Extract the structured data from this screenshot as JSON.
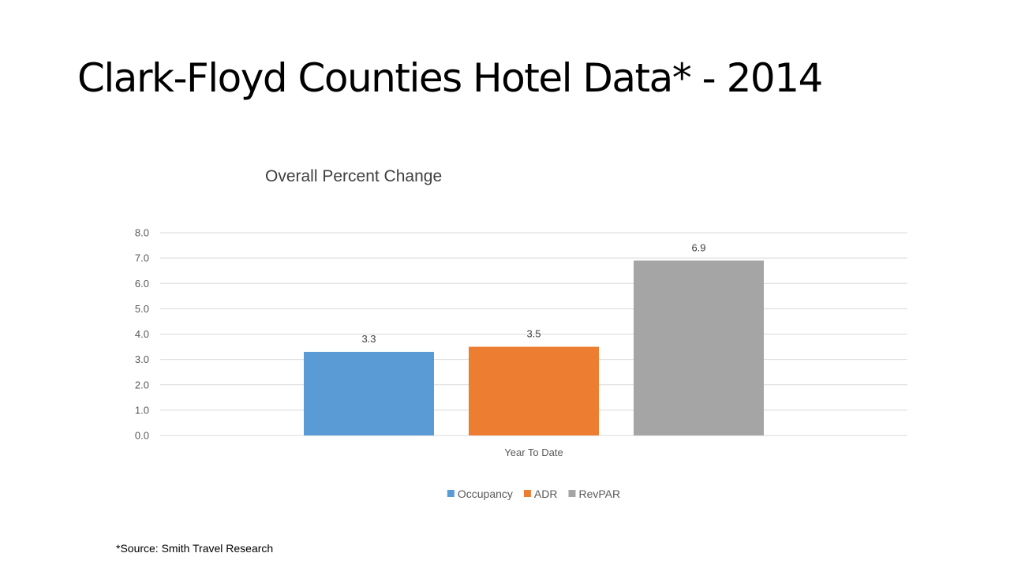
{
  "slide": {
    "title": "Clark-Floyd Counties Hotel Data* - 2014",
    "source_note": "*Source: Smith Travel Research"
  },
  "chart_data": {
    "type": "bar",
    "title": "Overall Percent Change",
    "categories": [
      "Year To Date"
    ],
    "series": [
      {
        "name": "Occupancy",
        "values": [
          3.3
        ],
        "color": "#5b9bd5"
      },
      {
        "name": "ADR",
        "values": [
          3.5
        ],
        "color": "#ed7d31"
      },
      {
        "name": "RevPAR",
        "values": [
          6.9
        ],
        "color": "#a5a5a5"
      }
    ],
    "ylim": [
      0,
      8
    ],
    "yticks": [
      "0.0",
      "1.0",
      "2.0",
      "3.0",
      "4.0",
      "5.0",
      "6.0",
      "7.0",
      "8.0"
    ],
    "grid": true,
    "legend": "bottom",
    "colors": {
      "grid": "#d9d9d9",
      "text": "#595959"
    }
  }
}
